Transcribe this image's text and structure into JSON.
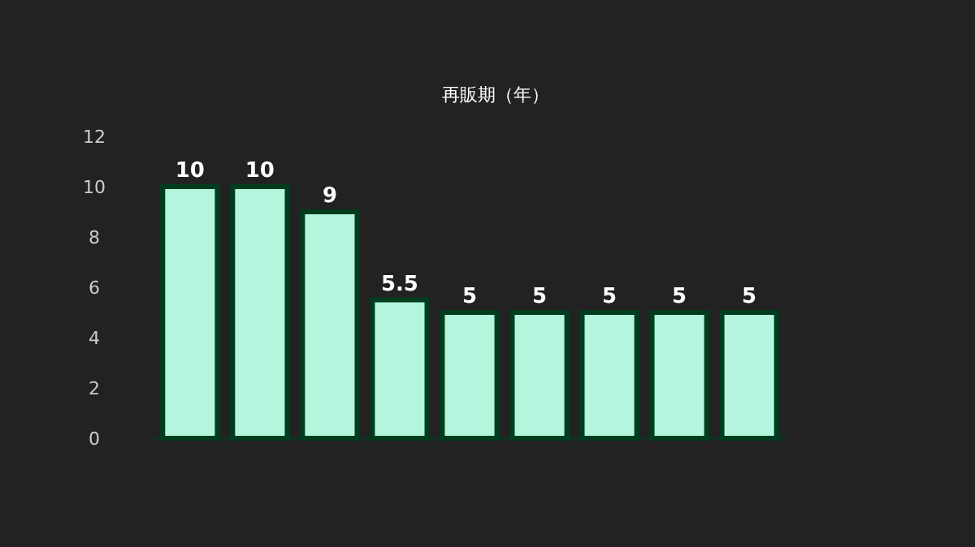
{
  "chart_data": {
    "type": "bar",
    "title": "再販期（年）",
    "categories": [
      null,
      null,
      null,
      null,
      null,
      null,
      null,
      null,
      null
    ],
    "values": [
      10,
      10,
      9,
      5.5,
      5,
      5,
      5,
      5,
      5
    ],
    "color": "#b3f5dd",
    "ylim": [
      0,
      12
    ],
    "yticks": [
      0,
      2,
      4,
      6,
      8,
      10,
      12
    ],
    "data_labels": true
  }
}
